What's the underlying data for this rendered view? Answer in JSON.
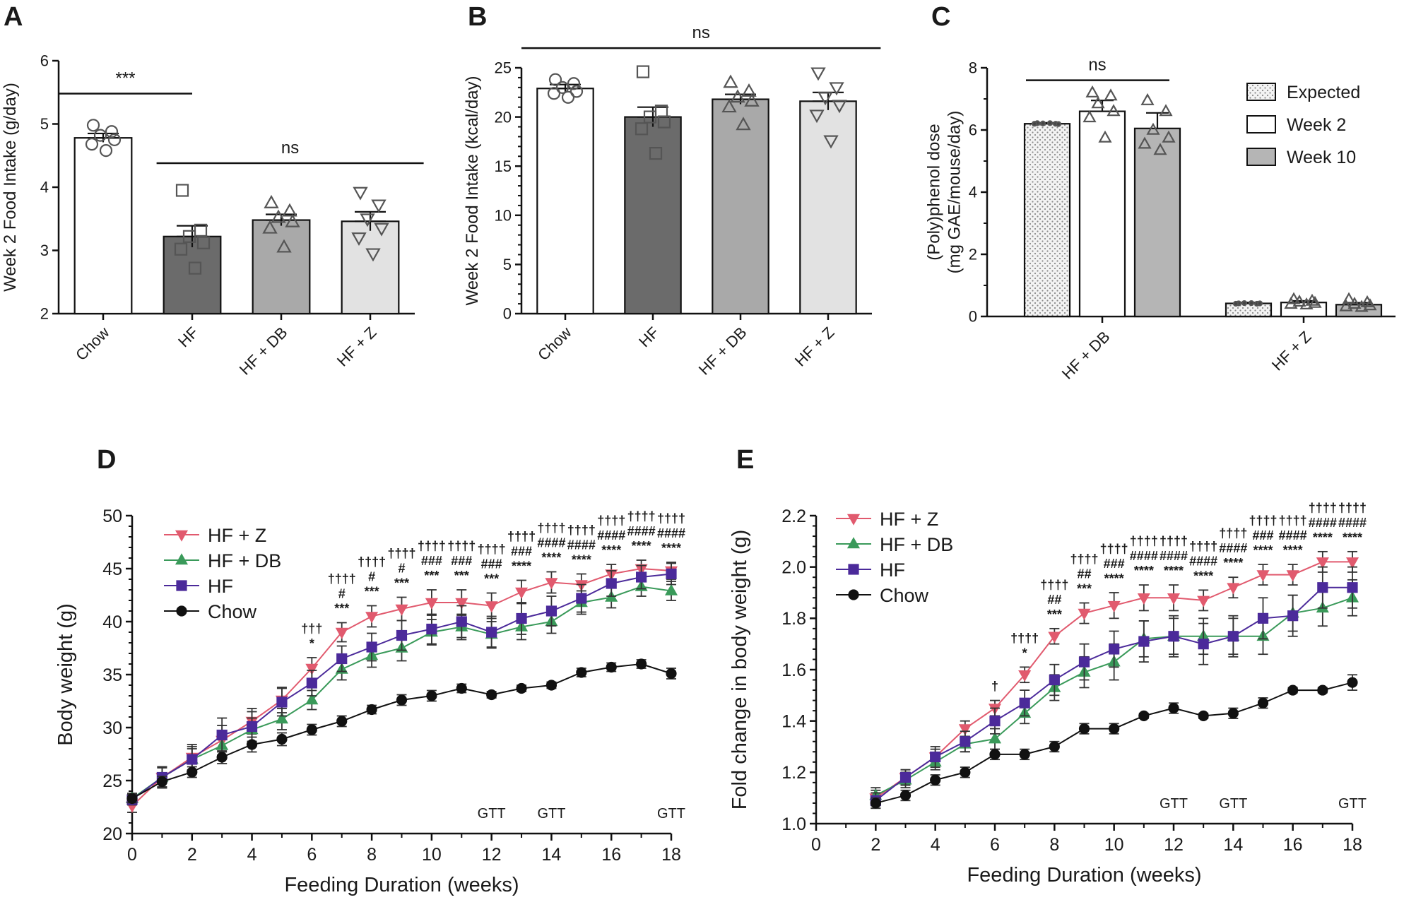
{
  "panel_letters": [
    "A",
    "B",
    "C",
    "D",
    "E"
  ],
  "chart_data": [
    {
      "id": "A",
      "type": "bar",
      "title": "",
      "xlabel": "",
      "ylabel": "Week 2 Food Intake (g/day)",
      "ylim": [
        2,
        6
      ],
      "yticks": [
        "2",
        "3",
        "4",
        "5",
        "6"
      ],
      "categories": [
        "Chow",
        "HF",
        "HF + DB",
        "HF + Z"
      ],
      "values": [
        4.78,
        3.22,
        3.48,
        3.46
      ],
      "errors": [
        0.07,
        0.17,
        0.09,
        0.15
      ],
      "fills": [
        "#ffffff",
        "#6b6b6b",
        "#a9a9a9",
        "#e2e2e2"
      ],
      "markers": [
        "circle",
        "square",
        "triangle-up",
        "triangle-down"
      ],
      "points": [
        [
          4.98,
          4.88,
          4.82,
          4.75,
          4.68,
          4.58
        ],
        [
          3.95,
          3.32,
          3.22,
          3.12,
          3.02,
          2.72
        ],
        [
          3.75,
          3.62,
          3.52,
          3.45,
          3.35,
          3.05
        ],
        [
          3.92,
          3.72,
          3.5,
          3.35,
          3.2,
          2.95
        ]
      ],
      "annotations": [
        {
          "text": "***",
          "x_from": -0.5,
          "x_to": 1.0,
          "y": 5.48
        },
        {
          "text": "ns",
          "x_from": 0.6,
          "x_to": 3.6,
          "y": 4.38
        }
      ]
    },
    {
      "id": "B",
      "type": "bar",
      "title": "",
      "xlabel": "",
      "ylabel": "Week 2 Food Intake (kcal/day)",
      "ylim": [
        0,
        25
      ],
      "yticks": [
        "0",
        "5",
        "10",
        "15",
        "20",
        "25"
      ],
      "categories": [
        "Chow",
        "HF",
        "HF + DB",
        "HF + Z"
      ],
      "values": [
        22.9,
        20.0,
        21.8,
        21.6
      ],
      "errors": [
        0.4,
        1.0,
        0.5,
        0.9
      ],
      "fills": [
        "#ffffff",
        "#6b6b6b",
        "#a9a9a9",
        "#e2e2e2"
      ],
      "markers": [
        "circle",
        "square",
        "triangle-up",
        "triangle-down"
      ],
      "points": [
        [
          23.8,
          23.4,
          23.0,
          22.6,
          22.4,
          22.0
        ],
        [
          24.6,
          20.6,
          20.0,
          19.5,
          18.8,
          16.3
        ],
        [
          23.5,
          22.6,
          22.0,
          21.6,
          21.0,
          19.2
        ],
        [
          24.5,
          23.0,
          22.0,
          21.2,
          20.2,
          17.6
        ]
      ],
      "annotations": [
        {
          "text": "ns",
          "x_from": -0.5,
          "x_to": 3.6,
          "y": 27.0
        }
      ]
    },
    {
      "id": "C",
      "type": "bar",
      "title": "",
      "xlabel": "",
      "ylabel": "(Poly)phenol dose\n(mg GAE/mouse/day)",
      "ylim": [
        0,
        8
      ],
      "yticks": [
        "0",
        "2",
        "4",
        "6",
        "8"
      ],
      "categories": [
        "HF + DB",
        "HF + Z"
      ],
      "series": [
        {
          "name": "Expected",
          "values": [
            6.2,
            0.42
          ],
          "errors": [
            0.03,
            0.03
          ],
          "fill": "dots"
        },
        {
          "name": "Week 2",
          "values": [
            6.6,
            0.45
          ],
          "errors": [
            0.35,
            0.05
          ],
          "fill": "#ffffff"
        },
        {
          "name": "Week 10",
          "values": [
            6.05,
            0.38
          ],
          "errors": [
            0.5,
            0.06
          ],
          "fill": "#b5b5b5"
        }
      ],
      "points": [
        [
          [
            6.22,
            6.2,
            6.21,
            6.19,
            6.2,
            6.22
          ],
          [
            0.42,
            0.41,
            0.43,
            0.42,
            0.41,
            0.43
          ]
        ],
        [
          [
            7.2,
            7.1,
            6.85,
            6.6,
            6.4,
            5.75
          ],
          [
            0.55,
            0.5,
            0.47,
            0.43,
            0.4,
            0.38
          ]
        ],
        [
          [
            6.95,
            6.6,
            6.0,
            5.75,
            5.55,
            5.35
          ],
          [
            0.55,
            0.45,
            0.4,
            0.35,
            0.32,
            0.3
          ]
        ]
      ],
      "legend": "top-right",
      "annotations": [
        {
          "text": "ns",
          "y": 7.6
        }
      ]
    },
    {
      "id": "D",
      "type": "line",
      "title": "",
      "xlabel": "Feeding Duration (weeks)",
      "ylabel": "Body weight (g)",
      "xlim": [
        0,
        18
      ],
      "ylim": [
        20,
        50
      ],
      "xticks": [
        "0",
        "2",
        "4",
        "6",
        "8",
        "10",
        "12",
        "14",
        "16",
        "18"
      ],
      "yticks": [
        "20",
        "25",
        "30",
        "35",
        "40",
        "45",
        "50"
      ],
      "legend": "top-left",
      "series": [
        {
          "name": "HF + Z",
          "color": "#e15a6e",
          "marker": "triangle-down",
          "x": [
            0,
            1,
            2,
            3,
            4,
            5,
            6,
            7,
            8,
            9,
            10,
            11,
            12,
            13,
            14,
            15,
            16,
            17,
            18
          ],
          "values": [
            22.6,
            25.3,
            27.2,
            28.8,
            30.6,
            32.6,
            35.6,
            39.0,
            40.5,
            41.2,
            41.8,
            41.8,
            41.5,
            42.8,
            43.7,
            43.5,
            44.5,
            45.0,
            44.8
          ],
          "errors": [
            0.6,
            1.0,
            1.2,
            1.4,
            1.2,
            1.2,
            1.0,
            0.9,
            1.0,
            1.1,
            1.2,
            1.2,
            1.2,
            1.1,
            1.0,
            1.0,
            0.9,
            0.8,
            0.8
          ]
        },
        {
          "name": "HF + DB",
          "color": "#3a9a5a",
          "marker": "triangle-up",
          "x": [
            0,
            1,
            2,
            3,
            4,
            5,
            6,
            7,
            8,
            9,
            10,
            11,
            12,
            13,
            14,
            15,
            16,
            17,
            18
          ],
          "values": [
            23.3,
            25.3,
            27.0,
            28.3,
            29.8,
            30.8,
            32.6,
            35.5,
            36.8,
            37.5,
            39.0,
            39.5,
            38.8,
            39.5,
            40.0,
            41.8,
            42.3,
            43.3,
            42.9
          ],
          "errors": [
            0.5,
            0.9,
            1.0,
            1.1,
            1.1,
            1.0,
            0.9,
            1.0,
            1.1,
            1.2,
            1.2,
            1.2,
            1.2,
            1.2,
            1.1,
            1.1,
            1.0,
            0.9,
            0.9
          ]
        },
        {
          "name": "HF",
          "color": "#4b2a9a",
          "marker": "square",
          "x": [
            0,
            1,
            2,
            3,
            4,
            5,
            6,
            7,
            8,
            9,
            10,
            11,
            12,
            13,
            14,
            15,
            16,
            17,
            18
          ],
          "values": [
            23.2,
            25.3,
            27.0,
            29.3,
            30.1,
            32.4,
            34.2,
            36.5,
            37.6,
            38.7,
            39.3,
            40.0,
            39.0,
            40.3,
            41.0,
            42.2,
            43.6,
            44.2,
            44.5
          ],
          "errors": [
            0.5,
            1.0,
            1.2,
            1.6,
            1.4,
            1.3,
            1.2,
            1.2,
            1.3,
            1.4,
            1.4,
            1.5,
            1.5,
            1.5,
            1.4,
            1.3,
            1.2,
            1.1,
            1.0
          ]
        },
        {
          "name": "Chow",
          "color": "#111111",
          "marker": "circle",
          "x": [
            0,
            1,
            2,
            3,
            4,
            5,
            6,
            7,
            8,
            9,
            10,
            11,
            12,
            13,
            14,
            15,
            16,
            17,
            18
          ],
          "values": [
            23.3,
            24.9,
            25.8,
            27.2,
            28.4,
            28.9,
            29.8,
            30.6,
            31.7,
            32.6,
            33.0,
            33.7,
            33.1,
            33.7,
            34.0,
            35.2,
            35.7,
            36.0,
            35.1
          ],
          "errors": [
            0.4,
            0.5,
            0.5,
            0.6,
            0.7,
            0.6,
            0.5,
            0.5,
            0.4,
            0.5,
            0.5,
            0.4,
            0.3,
            0.3,
            0.3,
            0.4,
            0.4,
            0.4,
            0.5
          ]
        }
      ],
      "gtt_labels": [
        {
          "text": "GTT",
          "x": 12
        },
        {
          "text": "GTT",
          "x": 14
        },
        {
          "text": "GTT",
          "x": 18
        }
      ],
      "significance": [
        {
          "x": 6,
          "lines": [
            "†††",
            "*"
          ]
        },
        {
          "x": 7,
          "lines": [
            "††††",
            "#",
            "***"
          ]
        },
        {
          "x": 8,
          "lines": [
            "††††",
            "#",
            "***"
          ]
        },
        {
          "x": 9,
          "lines": [
            "††††",
            "#",
            "***"
          ]
        },
        {
          "x": 10,
          "lines": [
            "††††",
            "###",
            "***"
          ]
        },
        {
          "x": 11,
          "lines": [
            "††††",
            "###",
            "***"
          ]
        },
        {
          "x": 12,
          "lines": [
            "††††",
            "###",
            "***"
          ]
        },
        {
          "x": 13,
          "lines": [
            "††††",
            "###",
            "****"
          ]
        },
        {
          "x": 14,
          "lines": [
            "††††",
            "####",
            "****"
          ]
        },
        {
          "x": 15,
          "lines": [
            "††††",
            "####",
            "****"
          ]
        },
        {
          "x": 16,
          "lines": [
            "††††",
            "####",
            "****"
          ]
        },
        {
          "x": 17,
          "lines": [
            "††††",
            "####",
            "****"
          ]
        },
        {
          "x": 18,
          "lines": [
            "††††",
            "####",
            "****"
          ]
        }
      ]
    },
    {
      "id": "E",
      "type": "line",
      "title": "",
      "xlabel": "Feeding Duration (weeks)",
      "ylabel": "Fold change in body weight (g)",
      "xlim": [
        0,
        18
      ],
      "ylim": [
        1.0,
        2.2
      ],
      "xticks": [
        "0",
        "2",
        "4",
        "6",
        "8",
        "10",
        "12",
        "14",
        "16",
        "18"
      ],
      "yticks": [
        "1.0",
        "1.2",
        "1.4",
        "1.6",
        "1.8",
        "2.0",
        "2.2"
      ],
      "legend": "top-left",
      "series": [
        {
          "name": "HF + Z",
          "color": "#e15a6e",
          "marker": "triangle-down",
          "x": [
            2,
            3,
            4,
            5,
            6,
            7,
            8,
            9,
            10,
            11,
            12,
            13,
            14,
            15,
            16,
            17,
            18
          ],
          "values": [
            1.1,
            1.18,
            1.26,
            1.37,
            1.45,
            1.58,
            1.73,
            1.82,
            1.85,
            1.88,
            1.88,
            1.87,
            1.92,
            1.97,
            1.97,
            2.02,
            2.02
          ],
          "errors": [
            0.03,
            0.03,
            0.03,
            0.03,
            0.03,
            0.03,
            0.03,
            0.04,
            0.05,
            0.05,
            0.05,
            0.04,
            0.04,
            0.04,
            0.04,
            0.04,
            0.04
          ]
        },
        {
          "name": "HF + DB",
          "color": "#3a9a5a",
          "marker": "triangle-up",
          "x": [
            2,
            3,
            4,
            5,
            6,
            7,
            8,
            9,
            10,
            11,
            12,
            13,
            14,
            15,
            16,
            17,
            18
          ],
          "values": [
            1.11,
            1.17,
            1.24,
            1.31,
            1.33,
            1.43,
            1.53,
            1.59,
            1.63,
            1.72,
            1.73,
            1.73,
            1.73,
            1.73,
            1.82,
            1.84,
            1.88
          ],
          "errors": [
            0.03,
            0.03,
            0.03,
            0.03,
            0.04,
            0.04,
            0.05,
            0.06,
            0.07,
            0.07,
            0.07,
            0.07,
            0.07,
            0.07,
            0.07,
            0.07,
            0.07
          ]
        },
        {
          "name": "HF",
          "color": "#4b2a9a",
          "marker": "square",
          "x": [
            2,
            3,
            4,
            5,
            6,
            7,
            8,
            9,
            10,
            11,
            12,
            13,
            14,
            15,
            16,
            17,
            18
          ],
          "values": [
            1.09,
            1.18,
            1.26,
            1.32,
            1.4,
            1.47,
            1.56,
            1.63,
            1.68,
            1.71,
            1.73,
            1.7,
            1.73,
            1.8,
            1.81,
            1.92,
            1.92
          ],
          "errors": [
            0.03,
            0.03,
            0.04,
            0.04,
            0.05,
            0.05,
            0.06,
            0.07,
            0.07,
            0.08,
            0.08,
            0.08,
            0.08,
            0.08,
            0.08,
            0.08,
            0.08
          ]
        },
        {
          "name": "Chow",
          "color": "#111111",
          "marker": "circle",
          "x": [
            2,
            3,
            4,
            5,
            6,
            7,
            8,
            9,
            10,
            11,
            12,
            13,
            14,
            15,
            16,
            17,
            18
          ],
          "values": [
            1.08,
            1.11,
            1.17,
            1.2,
            1.27,
            1.27,
            1.3,
            1.37,
            1.37,
            1.42,
            1.45,
            1.42,
            1.43,
            1.47,
            1.52,
            1.52,
            1.55
          ],
          "errors": [
            0.02,
            0.02,
            0.02,
            0.02,
            0.02,
            0.02,
            0.02,
            0.02,
            0.02,
            0.01,
            0.02,
            0.01,
            0.02,
            0.02,
            0.01,
            0.01,
            0.03
          ]
        }
      ],
      "gtt_labels": [
        {
          "text": "GTT",
          "x": 12
        },
        {
          "text": "GTT",
          "x": 14
        },
        {
          "text": "GTT",
          "x": 18
        }
      ],
      "significance": [
        {
          "x": 6,
          "lines": [
            "†"
          ]
        },
        {
          "x": 7,
          "lines": [
            "††††",
            "*"
          ]
        },
        {
          "x": 8,
          "lines": [
            "††††",
            "##",
            "***"
          ]
        },
        {
          "x": 9,
          "lines": [
            "††††",
            "##",
            "***"
          ]
        },
        {
          "x": 10,
          "lines": [
            "††††",
            "###",
            "****"
          ]
        },
        {
          "x": 11,
          "lines": [
            "††††",
            "####",
            "****"
          ]
        },
        {
          "x": 12,
          "lines": [
            "††††",
            "####",
            "****"
          ]
        },
        {
          "x": 13,
          "lines": [
            "††††",
            "####",
            "****"
          ]
        },
        {
          "x": 14,
          "lines": [
            "††††",
            "####",
            "****"
          ]
        },
        {
          "x": 15,
          "lines": [
            "††††",
            "###",
            "****"
          ]
        },
        {
          "x": 16,
          "lines": [
            "††††",
            "####",
            "****"
          ]
        },
        {
          "x": 17,
          "lines": [
            "††††",
            "####",
            "****"
          ]
        },
        {
          "x": 18,
          "lines": [
            "††††",
            "####",
            "****"
          ]
        }
      ]
    }
  ]
}
